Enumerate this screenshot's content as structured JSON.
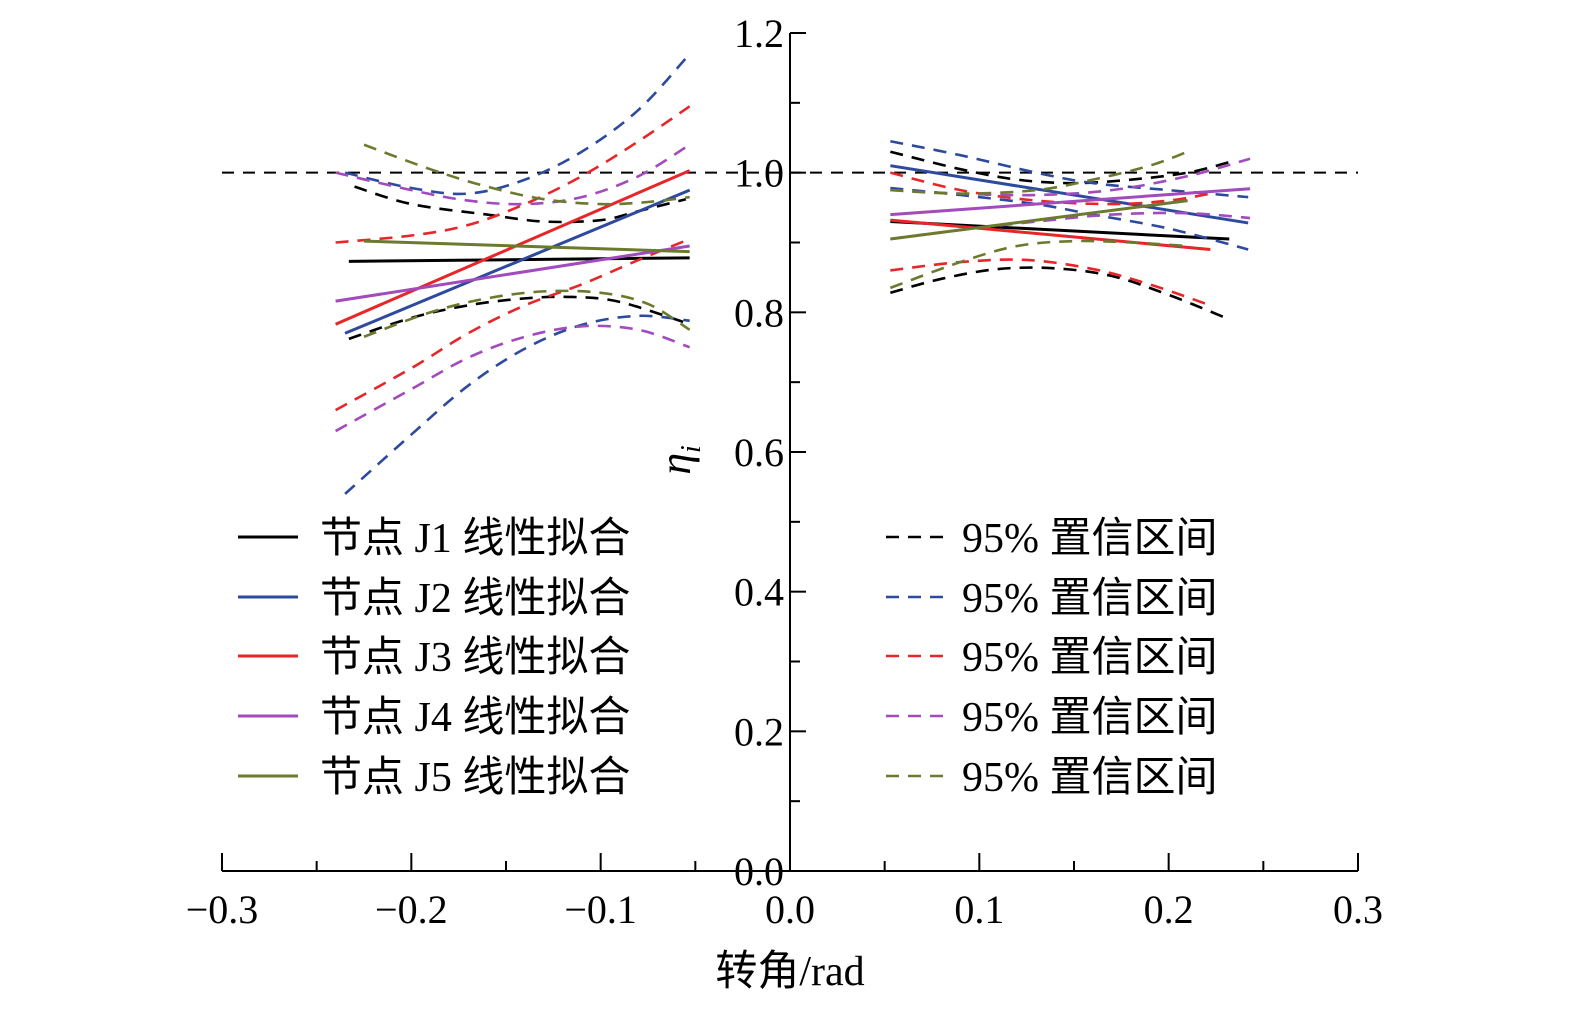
{
  "chart_data": {
    "type": "line",
    "xlabel": "转角/rad",
    "ylabel": "η",
    "ylabel_sub": "i",
    "xlim": [
      -0.3,
      0.3
    ],
    "ylim": [
      0.0,
      1.2
    ],
    "xticks": [
      -0.3,
      -0.2,
      -0.1,
      0.0,
      0.1,
      0.2,
      0.3
    ],
    "xtick_labels": [
      "−0.3",
      "−0.2",
      "−0.1",
      "0.0",
      "0.1",
      "0.2",
      "0.3"
    ],
    "yticks": [
      0.0,
      0.2,
      0.4,
      0.6,
      0.8,
      1.0,
      1.2
    ],
    "ytick_labels": [
      "0.0",
      "0.2",
      "0.4",
      "0.6",
      "0.8",
      "1.0",
      "1.2"
    ],
    "grid": false,
    "reference_line": {
      "y": 1.0,
      "style": "dashed",
      "color": "#000000"
    },
    "legend": {
      "placement": "bottom",
      "fit_entries": [
        {
          "label": "节点 J1 线性拟合",
          "color": "#000000"
        },
        {
          "label": "节点 J2 线性拟合",
          "color": "#2e4a9e"
        },
        {
          "label": "节点 J3 线性拟合",
          "color": "#e8262a"
        },
        {
          "label": "节点 J4 线性拟合",
          "color": "#a24bbd"
        },
        {
          "label": "节点 J5 线性拟合",
          "color": "#6b7a2e"
        }
      ],
      "ci_entries": [
        {
          "label": "95% 置信区间",
          "color": "#000000"
        },
        {
          "label": "95% 置信区间",
          "color": "#2e4a9e"
        },
        {
          "label": "95% 置信区间",
          "color": "#e8262a"
        },
        {
          "label": "95% 置信区间",
          "color": "#a24bbd"
        },
        {
          "label": "95% 置信区间",
          "color": "#6b7a2e"
        }
      ]
    },
    "series": [
      {
        "name": "节点 J1 线性拟合",
        "color": "#000000",
        "neg": {
          "fit": [
            [
              -0.233,
              0.873
            ],
            [
              -0.053,
              0.878
            ]
          ],
          "ci_upper": [
            [
              -0.23,
              0.98
            ],
            [
              -0.2,
              0.955
            ],
            [
              -0.16,
              0.94
            ],
            [
              -0.13,
              0.93
            ],
            [
              -0.1,
              0.932
            ],
            [
              -0.08,
              0.945
            ],
            [
              -0.055,
              0.962
            ]
          ],
          "ci_lower": [
            [
              -0.233,
              0.762
            ],
            [
              -0.2,
              0.792
            ],
            [
              -0.17,
              0.81
            ],
            [
              -0.14,
              0.82
            ],
            [
              -0.115,
              0.822
            ],
            [
              -0.09,
              0.815
            ],
            [
              -0.055,
              0.785
            ]
          ]
        },
        "pos": {
          "fit": [
            [
              0.053,
              0.93
            ],
            [
              0.232,
              0.905
            ]
          ],
          "ci_upper": [
            [
              0.053,
              1.03
            ],
            [
              0.09,
              1.005
            ],
            [
              0.12,
              0.99
            ],
            [
              0.15,
              0.985
            ],
            [
              0.18,
              0.99
            ],
            [
              0.21,
              1.0
            ],
            [
              0.232,
              1.015
            ]
          ],
          "ci_lower": [
            [
              0.053,
              0.828
            ],
            [
              0.08,
              0.848
            ],
            [
              0.11,
              0.862
            ],
            [
              0.14,
              0.863
            ],
            [
              0.17,
              0.852
            ],
            [
              0.2,
              0.825
            ],
            [
              0.232,
              0.79
            ]
          ]
        }
      },
      {
        "name": "节点 J2 线性拟合",
        "color": "#2e4a9e",
        "neg": {
          "fit": [
            [
              -0.235,
              0.77
            ],
            [
              -0.053,
              0.975
            ]
          ],
          "ci_upper": [
            [
              -0.235,
              1.0
            ],
            [
              -0.2,
              0.978
            ],
            [
              -0.17,
              0.97
            ],
            [
              -0.14,
              0.99
            ],
            [
              -0.11,
              1.03
            ],
            [
              -0.08,
              1.09
            ],
            [
              -0.053,
              1.17
            ]
          ],
          "ci_lower": [
            [
              -0.235,
              0.54
            ],
            [
              -0.2,
              0.625
            ],
            [
              -0.17,
              0.695
            ],
            [
              -0.14,
              0.748
            ],
            [
              -0.11,
              0.782
            ],
            [
              -0.08,
              0.795
            ],
            [
              -0.053,
              0.788
            ]
          ]
        },
        "pos": {
          "fit": [
            [
              0.053,
              1.01
            ],
            [
              0.242,
              0.928
            ]
          ],
          "ci_upper": [
            [
              0.053,
              1.045
            ],
            [
              0.09,
              1.025
            ],
            [
              0.13,
              1.0
            ],
            [
              0.16,
              0.985
            ],
            [
              0.2,
              0.975
            ],
            [
              0.242,
              0.965
            ]
          ],
          "ci_lower": [
            [
              0.053,
              0.978
            ],
            [
              0.09,
              0.968
            ],
            [
              0.13,
              0.955
            ],
            [
              0.16,
              0.94
            ],
            [
              0.2,
              0.92
            ],
            [
              0.242,
              0.89
            ]
          ]
        }
      },
      {
        "name": "节点 J3 线性拟合",
        "color": "#e8262a",
        "neg": {
          "fit": [
            [
              -0.24,
              0.783
            ],
            [
              -0.053,
              1.003
            ]
          ],
          "ci_upper": [
            [
              -0.24,
              0.9
            ],
            [
              -0.2,
              0.91
            ],
            [
              -0.17,
              0.925
            ],
            [
              -0.14,
              0.955
            ],
            [
              -0.11,
              0.995
            ],
            [
              -0.08,
              1.045
            ],
            [
              -0.053,
              1.095
            ]
          ],
          "ci_lower": [
            [
              -0.24,
              0.66
            ],
            [
              -0.2,
              0.72
            ],
            [
              -0.17,
              0.77
            ],
            [
              -0.14,
              0.81
            ],
            [
              -0.11,
              0.84
            ],
            [
              -0.08,
              0.875
            ],
            [
              -0.053,
              0.905
            ]
          ]
        },
        "pos": {
          "fit": [
            [
              0.053,
              0.932
            ],
            [
              0.222,
              0.89
            ]
          ],
          "ci_upper": [
            [
              0.053,
              1.0
            ],
            [
              0.09,
              0.975
            ],
            [
              0.13,
              0.96
            ],
            [
              0.17,
              0.955
            ],
            [
              0.2,
              0.96
            ],
            [
              0.222,
              0.97
            ]
          ],
          "ci_lower": [
            [
              0.053,
              0.86
            ],
            [
              0.09,
              0.872
            ],
            [
              0.125,
              0.875
            ],
            [
              0.16,
              0.862
            ],
            [
              0.19,
              0.84
            ],
            [
              0.222,
              0.81
            ]
          ]
        }
      },
      {
        "name": "节点 J4 线性拟合",
        "color": "#a24bbd",
        "neg": {
          "fit": [
            [
              -0.24,
              0.816
            ],
            [
              -0.053,
              0.895
            ]
          ],
          "ci_upper": [
            [
              -0.24,
              1.0
            ],
            [
              -0.2,
              0.975
            ],
            [
              -0.17,
              0.96
            ],
            [
              -0.14,
              0.955
            ],
            [
              -0.11,
              0.965
            ],
            [
              -0.08,
              0.995
            ],
            [
              -0.053,
              1.04
            ]
          ],
          "ci_lower": [
            [
              -0.24,
              0.63
            ],
            [
              -0.2,
              0.69
            ],
            [
              -0.17,
              0.735
            ],
            [
              -0.14,
              0.765
            ],
            [
              -0.11,
              0.78
            ],
            [
              -0.08,
              0.775
            ],
            [
              -0.053,
              0.75
            ]
          ]
        },
        "pos": {
          "fit": [
            [
              0.053,
              0.94
            ],
            [
              0.243,
              0.977
            ]
          ],
          "ci_upper": [
            [
              0.053,
              0.975
            ],
            [
              0.09,
              0.97
            ],
            [
              0.13,
              0.968
            ],
            [
              0.17,
              0.975
            ],
            [
              0.21,
              0.995
            ],
            [
              0.243,
              1.02
            ]
          ],
          "ci_lower": [
            [
              0.053,
              0.905
            ],
            [
              0.09,
              0.918
            ],
            [
              0.13,
              0.93
            ],
            [
              0.17,
              0.94
            ],
            [
              0.21,
              0.942
            ],
            [
              0.243,
              0.935
            ]
          ]
        }
      },
      {
        "name": "节点 J5 线性拟合",
        "color": "#6b7a2e",
        "neg": {
          "fit": [
            [
              -0.225,
              0.902
            ],
            [
              -0.053,
              0.887
            ]
          ],
          "ci_upper": [
            [
              -0.225,
              1.04
            ],
            [
              -0.19,
              1.005
            ],
            [
              -0.16,
              0.98
            ],
            [
              -0.13,
              0.962
            ],
            [
              -0.1,
              0.955
            ],
            [
              -0.075,
              0.958
            ],
            [
              -0.053,
              0.965
            ]
          ],
          "ci_lower": [
            [
              -0.225,
              0.765
            ],
            [
              -0.19,
              0.8
            ],
            [
              -0.16,
              0.82
            ],
            [
              -0.13,
              0.83
            ],
            [
              -0.1,
              0.828
            ],
            [
              -0.075,
              0.812
            ],
            [
              -0.053,
              0.775
            ]
          ]
        },
        "pos": {
          "fit": [
            [
              0.053,
              0.905
            ],
            [
              0.21,
              0.96
            ]
          ],
          "ci_upper": [
            [
              0.053,
              0.975
            ],
            [
              0.09,
              0.97
            ],
            [
              0.13,
              0.975
            ],
            [
              0.16,
              0.99
            ],
            [
              0.19,
              1.01
            ],
            [
              0.21,
              1.03
            ]
          ],
          "ci_lower": [
            [
              0.053,
              0.835
            ],
            [
              0.09,
              0.872
            ],
            [
              0.12,
              0.895
            ],
            [
              0.15,
              0.902
            ],
            [
              0.18,
              0.9
            ],
            [
              0.21,
              0.895
            ]
          ]
        }
      }
    ]
  }
}
